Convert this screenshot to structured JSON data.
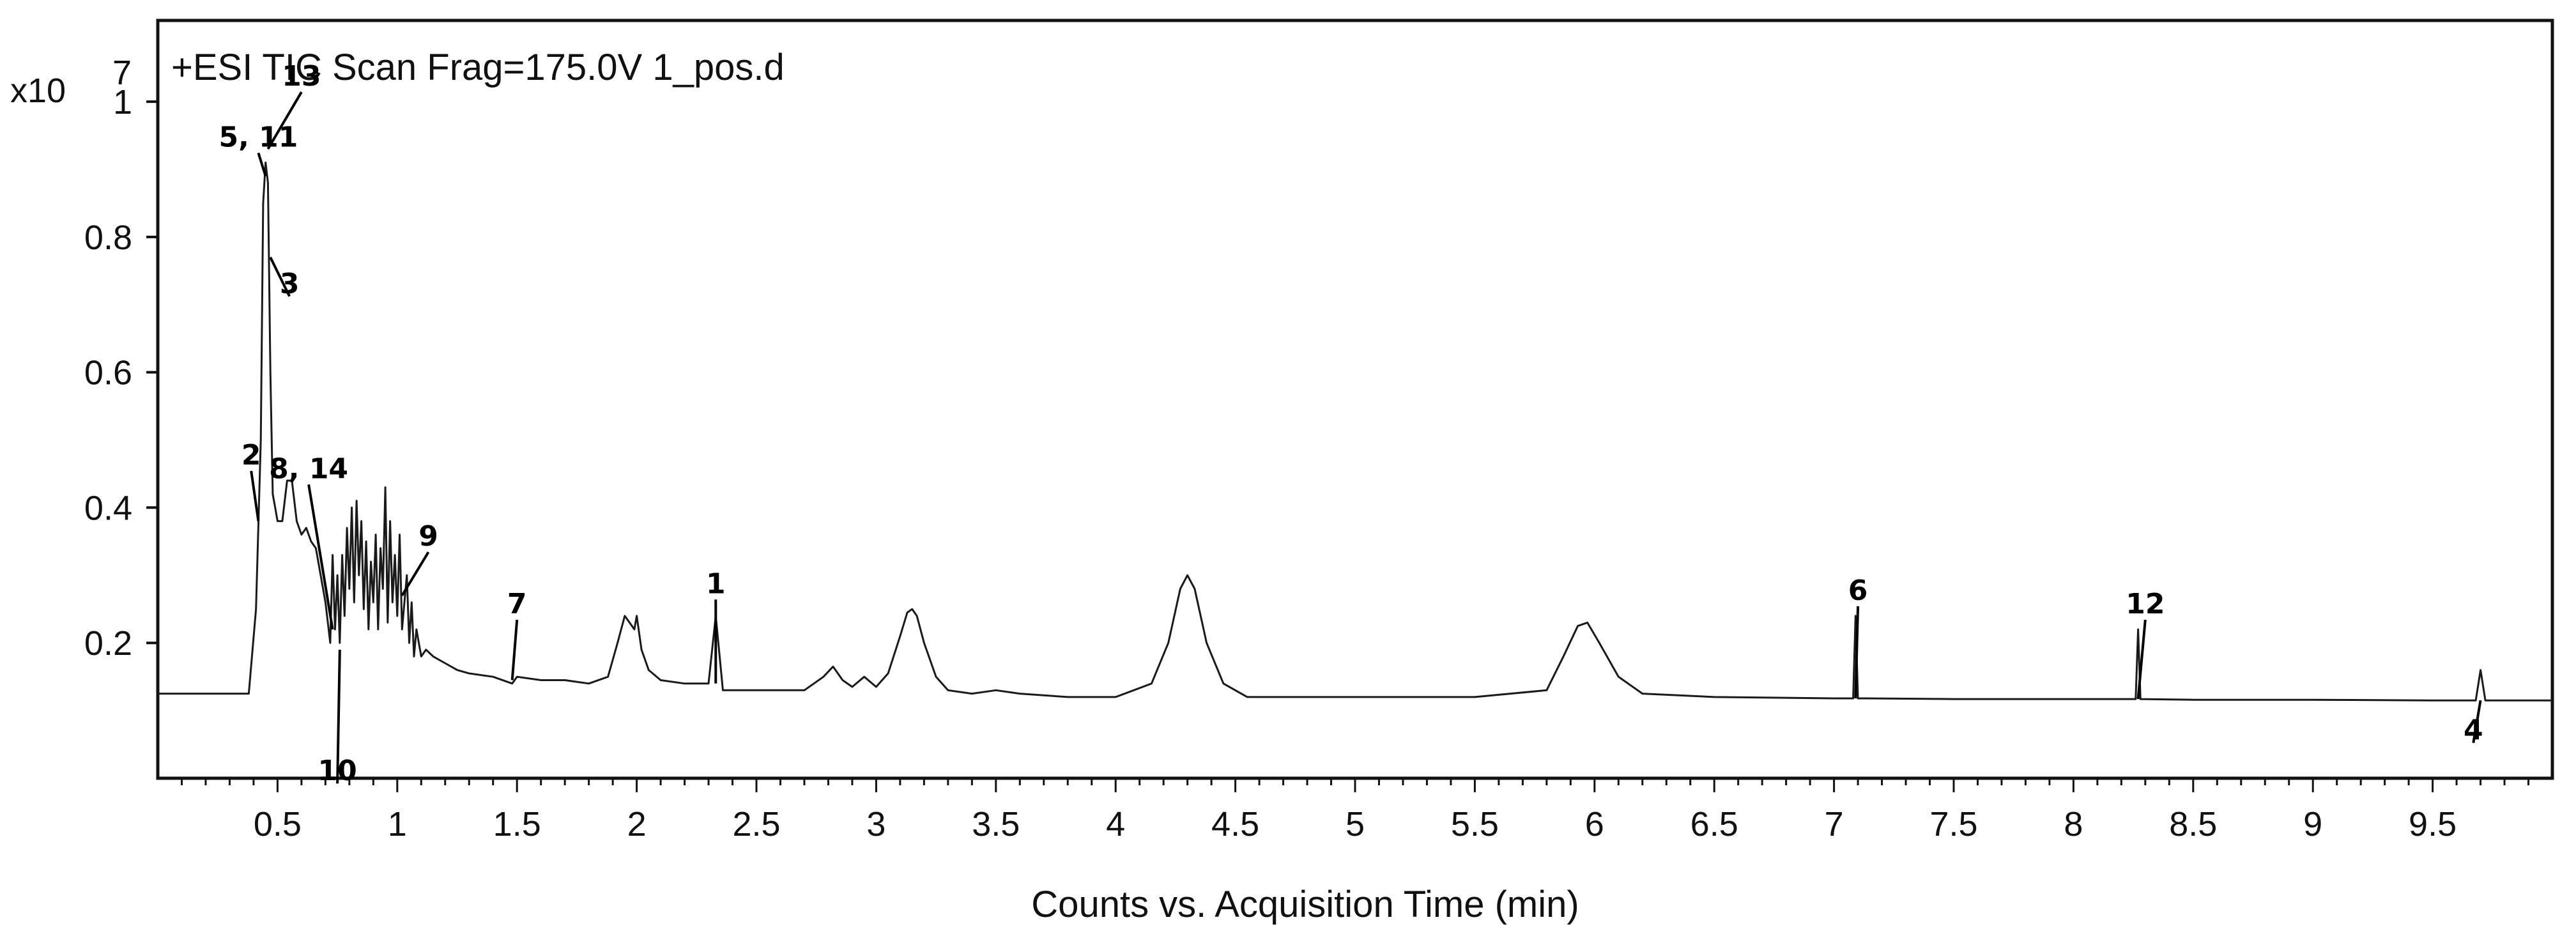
{
  "chart_data": {
    "type": "line",
    "title": "+ESI TIC Scan Frag=175.0V 1_pos.d",
    "xlabel": "Counts vs. Acquisition Time (min)",
    "ylabel": "",
    "y_multiplier_base": "x10",
    "y_multiplier_exp": "7",
    "xlim": [
      0,
      10
    ],
    "ylim": [
      0,
      1.12
    ],
    "x_ticks": [
      0.5,
      1,
      1.5,
      2,
      2.5,
      3,
      3.5,
      4,
      4.5,
      5,
      5.5,
      6,
      6.5,
      7,
      7.5,
      8,
      8.5,
      9,
      9.5
    ],
    "x_tick_labels": [
      "0.5",
      "1",
      "1.5",
      "2",
      "2.5",
      "3",
      "3.5",
      "4",
      "4.5",
      "5",
      "5.5",
      "6",
      "6.5",
      "7",
      "7.5",
      "8",
      "8.5",
      "9",
      "9.5"
    ],
    "y_ticks": [
      0.2,
      0.4,
      0.6,
      0.8,
      1
    ],
    "y_tick_labels": [
      "0.2",
      "0.4",
      "0.6",
      "0.8",
      "1"
    ],
    "grid": false,
    "legend": "none",
    "line_color": "#1a1a1a",
    "series": [
      {
        "x": [
          0.0,
          0.3,
          0.38,
          0.41,
          0.43,
          0.44,
          0.45,
          0.46,
          0.47,
          0.48,
          0.49,
          0.5,
          0.52,
          0.54,
          0.56,
          0.58,
          0.6,
          0.62,
          0.64,
          0.66,
          0.68,
          0.7,
          0.72,
          0.73,
          0.74,
          0.75,
          0.76,
          0.77,
          0.78,
          0.79,
          0.8,
          0.81,
          0.82,
          0.83,
          0.84,
          0.85,
          0.86,
          0.87,
          0.88,
          0.89,
          0.9,
          0.91,
          0.92,
          0.93,
          0.94,
          0.95,
          0.96,
          0.97,
          0.98,
          0.99,
          1.0,
          1.01,
          1.02,
          1.03,
          1.04,
          1.05,
          1.06,
          1.07,
          1.08,
          1.1,
          1.12,
          1.15,
          1.2,
          1.25,
          1.3,
          1.4,
          1.48,
          1.5,
          1.6,
          1.7,
          1.8,
          1.88,
          1.92,
          1.95,
          1.97,
          1.99,
          2.0,
          2.02,
          2.05,
          2.1,
          2.2,
          2.3,
          2.33,
          2.36,
          2.5,
          2.7,
          2.78,
          2.82,
          2.86,
          2.9,
          2.95,
          3.0,
          3.05,
          3.1,
          3.13,
          3.15,
          3.17,
          3.2,
          3.25,
          3.3,
          3.4,
          3.5,
          3.6,
          3.8,
          4.0,
          4.15,
          4.22,
          4.27,
          4.3,
          4.33,
          4.38,
          4.45,
          4.55,
          4.7,
          5.0,
          5.5,
          5.8,
          5.87,
          5.93,
          5.97,
          6.02,
          6.1,
          6.2,
          6.5,
          7.0,
          7.08,
          7.09,
          7.1,
          7.11,
          7.12,
          7.5,
          8.0,
          8.26,
          8.27,
          8.28,
          8.5,
          9.0,
          9.5,
          9.68,
          9.7,
          9.72,
          10.0
        ],
        "values": [
          0.125,
          0.125,
          0.125,
          0.25,
          0.5,
          0.85,
          0.91,
          0.88,
          0.6,
          0.42,
          0.4,
          0.38,
          0.38,
          0.44,
          0.44,
          0.38,
          0.36,
          0.37,
          0.35,
          0.34,
          0.3,
          0.26,
          0.2,
          0.33,
          0.22,
          0.3,
          0.2,
          0.33,
          0.24,
          0.37,
          0.28,
          0.4,
          0.26,
          0.41,
          0.3,
          0.38,
          0.25,
          0.35,
          0.22,
          0.32,
          0.26,
          0.36,
          0.22,
          0.34,
          0.28,
          0.43,
          0.23,
          0.38,
          0.26,
          0.33,
          0.24,
          0.36,
          0.22,
          0.26,
          0.3,
          0.2,
          0.26,
          0.18,
          0.22,
          0.18,
          0.19,
          0.18,
          0.17,
          0.16,
          0.155,
          0.15,
          0.14,
          0.15,
          0.145,
          0.145,
          0.14,
          0.15,
          0.2,
          0.24,
          0.23,
          0.22,
          0.24,
          0.19,
          0.16,
          0.145,
          0.14,
          0.14,
          0.24,
          0.13,
          0.13,
          0.13,
          0.15,
          0.165,
          0.145,
          0.135,
          0.15,
          0.135,
          0.155,
          0.21,
          0.245,
          0.25,
          0.24,
          0.2,
          0.15,
          0.13,
          0.125,
          0.13,
          0.125,
          0.12,
          0.12,
          0.14,
          0.2,
          0.28,
          0.3,
          0.28,
          0.2,
          0.14,
          0.12,
          0.12,
          0.12,
          0.12,
          0.13,
          0.18,
          0.225,
          0.23,
          0.2,
          0.15,
          0.125,
          0.12,
          0.118,
          0.118,
          0.24,
          0.118,
          0.118,
          0.118,
          0.117,
          0.117,
          0.117,
          0.22,
          0.117,
          0.116,
          0.116,
          0.115,
          0.115,
          0.16,
          0.115,
          0.115
        ]
      }
    ],
    "peak_labels": [
      {
        "text": "5, 11",
        "x": 0.42,
        "y": 0.91,
        "tip_x": 0.45,
        "tip_y": 0.89
      },
      {
        "text": "13",
        "x": 0.6,
        "y": 1.0,
        "tip_x": 0.46,
        "tip_y": 0.93
      },
      {
        "text": "3",
        "x": 0.55,
        "y": 0.75,
        "tip_x": 0.47,
        "tip_y": 0.77
      },
      {
        "text": "2",
        "x": 0.39,
        "y": 0.44,
        "tip_x": 0.42,
        "tip_y": 0.38
      },
      {
        "text": "8, 14",
        "x": 0.63,
        "y": 0.42,
        "tip_x": 0.73,
        "tip_y": 0.22
      },
      {
        "text": "9",
        "x": 1.13,
        "y": 0.32,
        "tip_x": 1.02,
        "tip_y": 0.27
      },
      {
        "text": "10",
        "x": 0.75,
        "y": 0.03,
        "tip_x": 0.76,
        "tip_y": 0.19
      },
      {
        "text": "7",
        "x": 1.5,
        "y": 0.22,
        "tip_x": 1.48,
        "tip_y": 0.145
      },
      {
        "text": "1",
        "x": 2.33,
        "y": 0.25,
        "tip_x": 2.33,
        "tip_y": 0.14
      },
      {
        "text": "6",
        "x": 7.1,
        "y": 0.24,
        "tip_x": 7.09,
        "tip_y": 0.118
      },
      {
        "text": "12",
        "x": 8.3,
        "y": 0.22,
        "tip_x": 8.27,
        "tip_y": 0.117
      },
      {
        "text": "4",
        "x": 9.67,
        "y": 0.09,
        "tip_x": 9.7,
        "tip_y": 0.115
      }
    ]
  }
}
